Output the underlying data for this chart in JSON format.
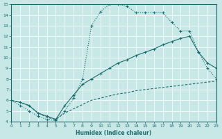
{
  "xlabel": "Humidex (Indice chaleur)",
  "bg_color": "#c8e8e8",
  "line_color": "#1a6b6b",
  "grid_color": "#b0d0d0",
  "xlim": [
    0,
    23
  ],
  "ylim": [
    4,
    15
  ],
  "xticks": [
    0,
    1,
    2,
    3,
    4,
    5,
    6,
    7,
    8,
    9,
    10,
    11,
    12,
    13,
    14,
    15,
    16,
    17,
    18,
    19,
    20,
    21,
    22,
    23
  ],
  "yticks": [
    4,
    5,
    6,
    7,
    8,
    9,
    10,
    11,
    12,
    13,
    14,
    15
  ],
  "line1_x": [
    0,
    1,
    2,
    3,
    4,
    5,
    6,
    7,
    8,
    9,
    10,
    11,
    12,
    13,
    14,
    15,
    16,
    17,
    18,
    19,
    20,
    21,
    22,
    23
  ],
  "line1_y": [
    6.0,
    5.5,
    5.0,
    4.5,
    4.2,
    4.1,
    5.0,
    6.2,
    8.0,
    13.0,
    14.3,
    15.0,
    15.0,
    14.8,
    14.2,
    14.2,
    14.2,
    14.2,
    13.3,
    12.5,
    12.5,
    10.5,
    9.0,
    8.0
  ],
  "line2_x": [
    0,
    1,
    2,
    3,
    4,
    5,
    6,
    7,
    8,
    9,
    10,
    11,
    12,
    13,
    14,
    15,
    16,
    17,
    18,
    19,
    20,
    21,
    22,
    23
  ],
  "line2_y": [
    6.0,
    5.8,
    5.5,
    4.8,
    4.5,
    4.2,
    5.5,
    6.5,
    7.5,
    8.0,
    8.5,
    9.0,
    9.5,
    9.8,
    10.2,
    10.5,
    10.8,
    11.2,
    11.5,
    11.8,
    12.0,
    10.5,
    9.5,
    9.0
  ],
  "line3_x": [
    0,
    1,
    2,
    3,
    4,
    5,
    6,
    7,
    8,
    9,
    10,
    11,
    12,
    13,
    14,
    15,
    16,
    17,
    18,
    19,
    20,
    21,
    22,
    23
  ],
  "line3_y": [
    6.0,
    5.8,
    5.5,
    4.8,
    4.4,
    4.2,
    4.8,
    5.2,
    5.6,
    6.0,
    6.2,
    6.4,
    6.6,
    6.7,
    6.9,
    7.0,
    7.1,
    7.2,
    7.3,
    7.4,
    7.5,
    7.6,
    7.7,
    7.8
  ]
}
